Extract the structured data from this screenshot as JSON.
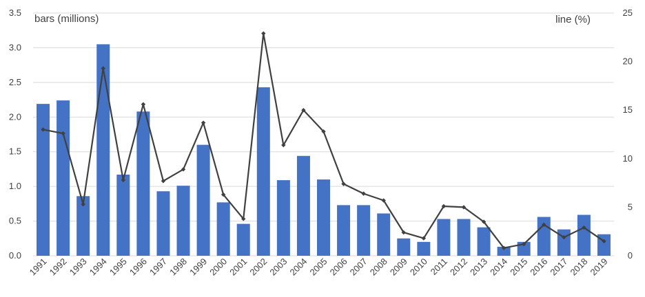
{
  "chart_data": {
    "type": "bar",
    "categories": [
      "1991",
      "1992",
      "1993",
      "1994",
      "1995",
      "1996",
      "1997",
      "1998",
      "1999",
      "2000",
      "2001",
      "2002",
      "2003",
      "2004",
      "2005",
      "2006",
      "2007",
      "2008",
      "2009",
      "2010",
      "2011",
      "2012",
      "2013",
      "2014",
      "2015",
      "2016",
      "2017",
      "2018",
      "2019"
    ],
    "series": [
      {
        "type": "bar",
        "axis": "left",
        "color": "#4472C4",
        "values": [
          2.19,
          2.24,
          0.86,
          3.05,
          1.17,
          2.08,
          0.93,
          1.01,
          1.6,
          0.77,
          0.46,
          2.43,
          1.09,
          1.44,
          1.1,
          0.73,
          0.73,
          0.61,
          0.25,
          0.2,
          0.53,
          0.53,
          0.41,
          0.13,
          0.2,
          0.56,
          0.38,
          0.59,
          0.31
        ]
      },
      {
        "type": "line",
        "axis": "right",
        "color": "#404040",
        "marker": "diamond",
        "values": [
          13.0,
          12.6,
          5.3,
          19.3,
          7.8,
          15.6,
          7.7,
          8.9,
          13.7,
          6.3,
          3.8,
          22.9,
          11.4,
          15.0,
          12.8,
          7.4,
          6.4,
          5.7,
          2.4,
          1.8,
          5.1,
          5.0,
          3.5,
          0.8,
          1.2,
          3.2,
          1.9,
          2.9,
          1.5
        ]
      }
    ],
    "ylabel_left": "bars (millions)",
    "ylabel_right": "line (%)",
    "ylim_left": [
      0,
      3.5
    ],
    "ylim_right": [
      0,
      25
    ],
    "yticks_left": [
      "0.0",
      "0.5",
      "1.0",
      "1.5",
      "2.0",
      "2.5",
      "3.0",
      "3.5"
    ],
    "yticks_right": [
      "0",
      "5",
      "10",
      "15",
      "20",
      "25"
    ],
    "grid": true,
    "legend": "none"
  }
}
